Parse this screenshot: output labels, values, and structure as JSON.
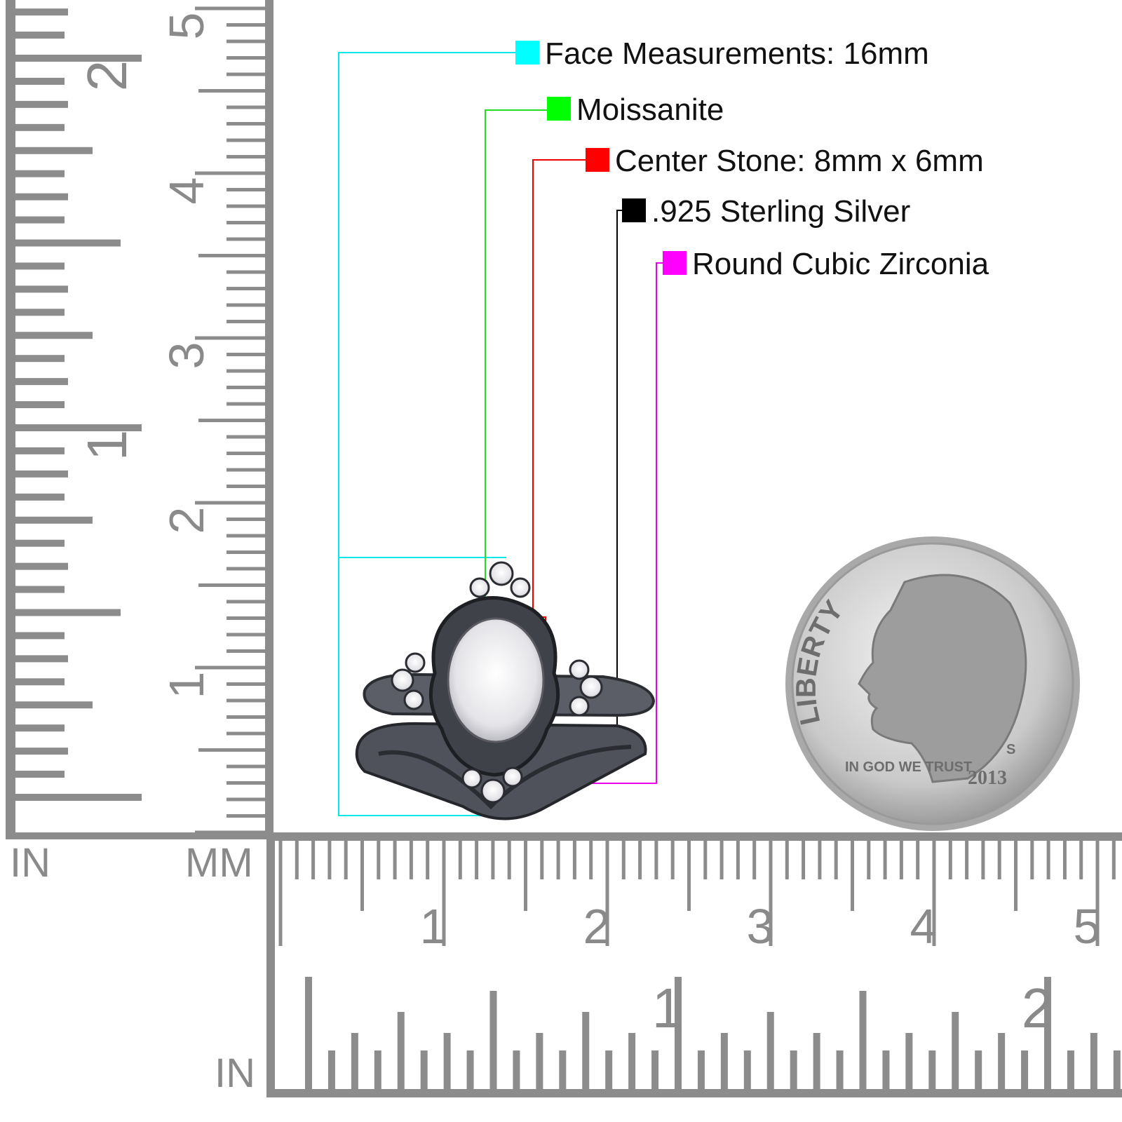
{
  "legend": [
    {
      "label": "Face Measurements: 16mm",
      "color": "#00ffff"
    },
    {
      "label": "Moissanite",
      "color": "#00ff00"
    },
    {
      "label": "Center Stone: 8mm x 6mm",
      "color": "#ff0000"
    },
    {
      "label": ".925 Sterling Silver",
      "color": "#000000"
    },
    {
      "label": "Round Cubic Zirconia",
      "color": "#ff00ff"
    }
  ],
  "ruler": {
    "color": "#8c8c8c",
    "unit_in": "IN",
    "unit_mm": "MM",
    "unit_in_bottom": "IN",
    "vertical_in_numbers": [
      "1",
      "2"
    ],
    "vertical_cm_numbers": [
      "1",
      "2",
      "3",
      "4",
      "5"
    ],
    "horizontal_cm_numbers": [
      "1",
      "2",
      "3",
      "4",
      "5"
    ],
    "horizontal_in_numbers": [
      "1",
      "2"
    ]
  },
  "coin": {
    "top_text": "LIBERTY",
    "motto": "IN GOD WE TRUST",
    "mint_mark": "S",
    "year": "2013"
  }
}
